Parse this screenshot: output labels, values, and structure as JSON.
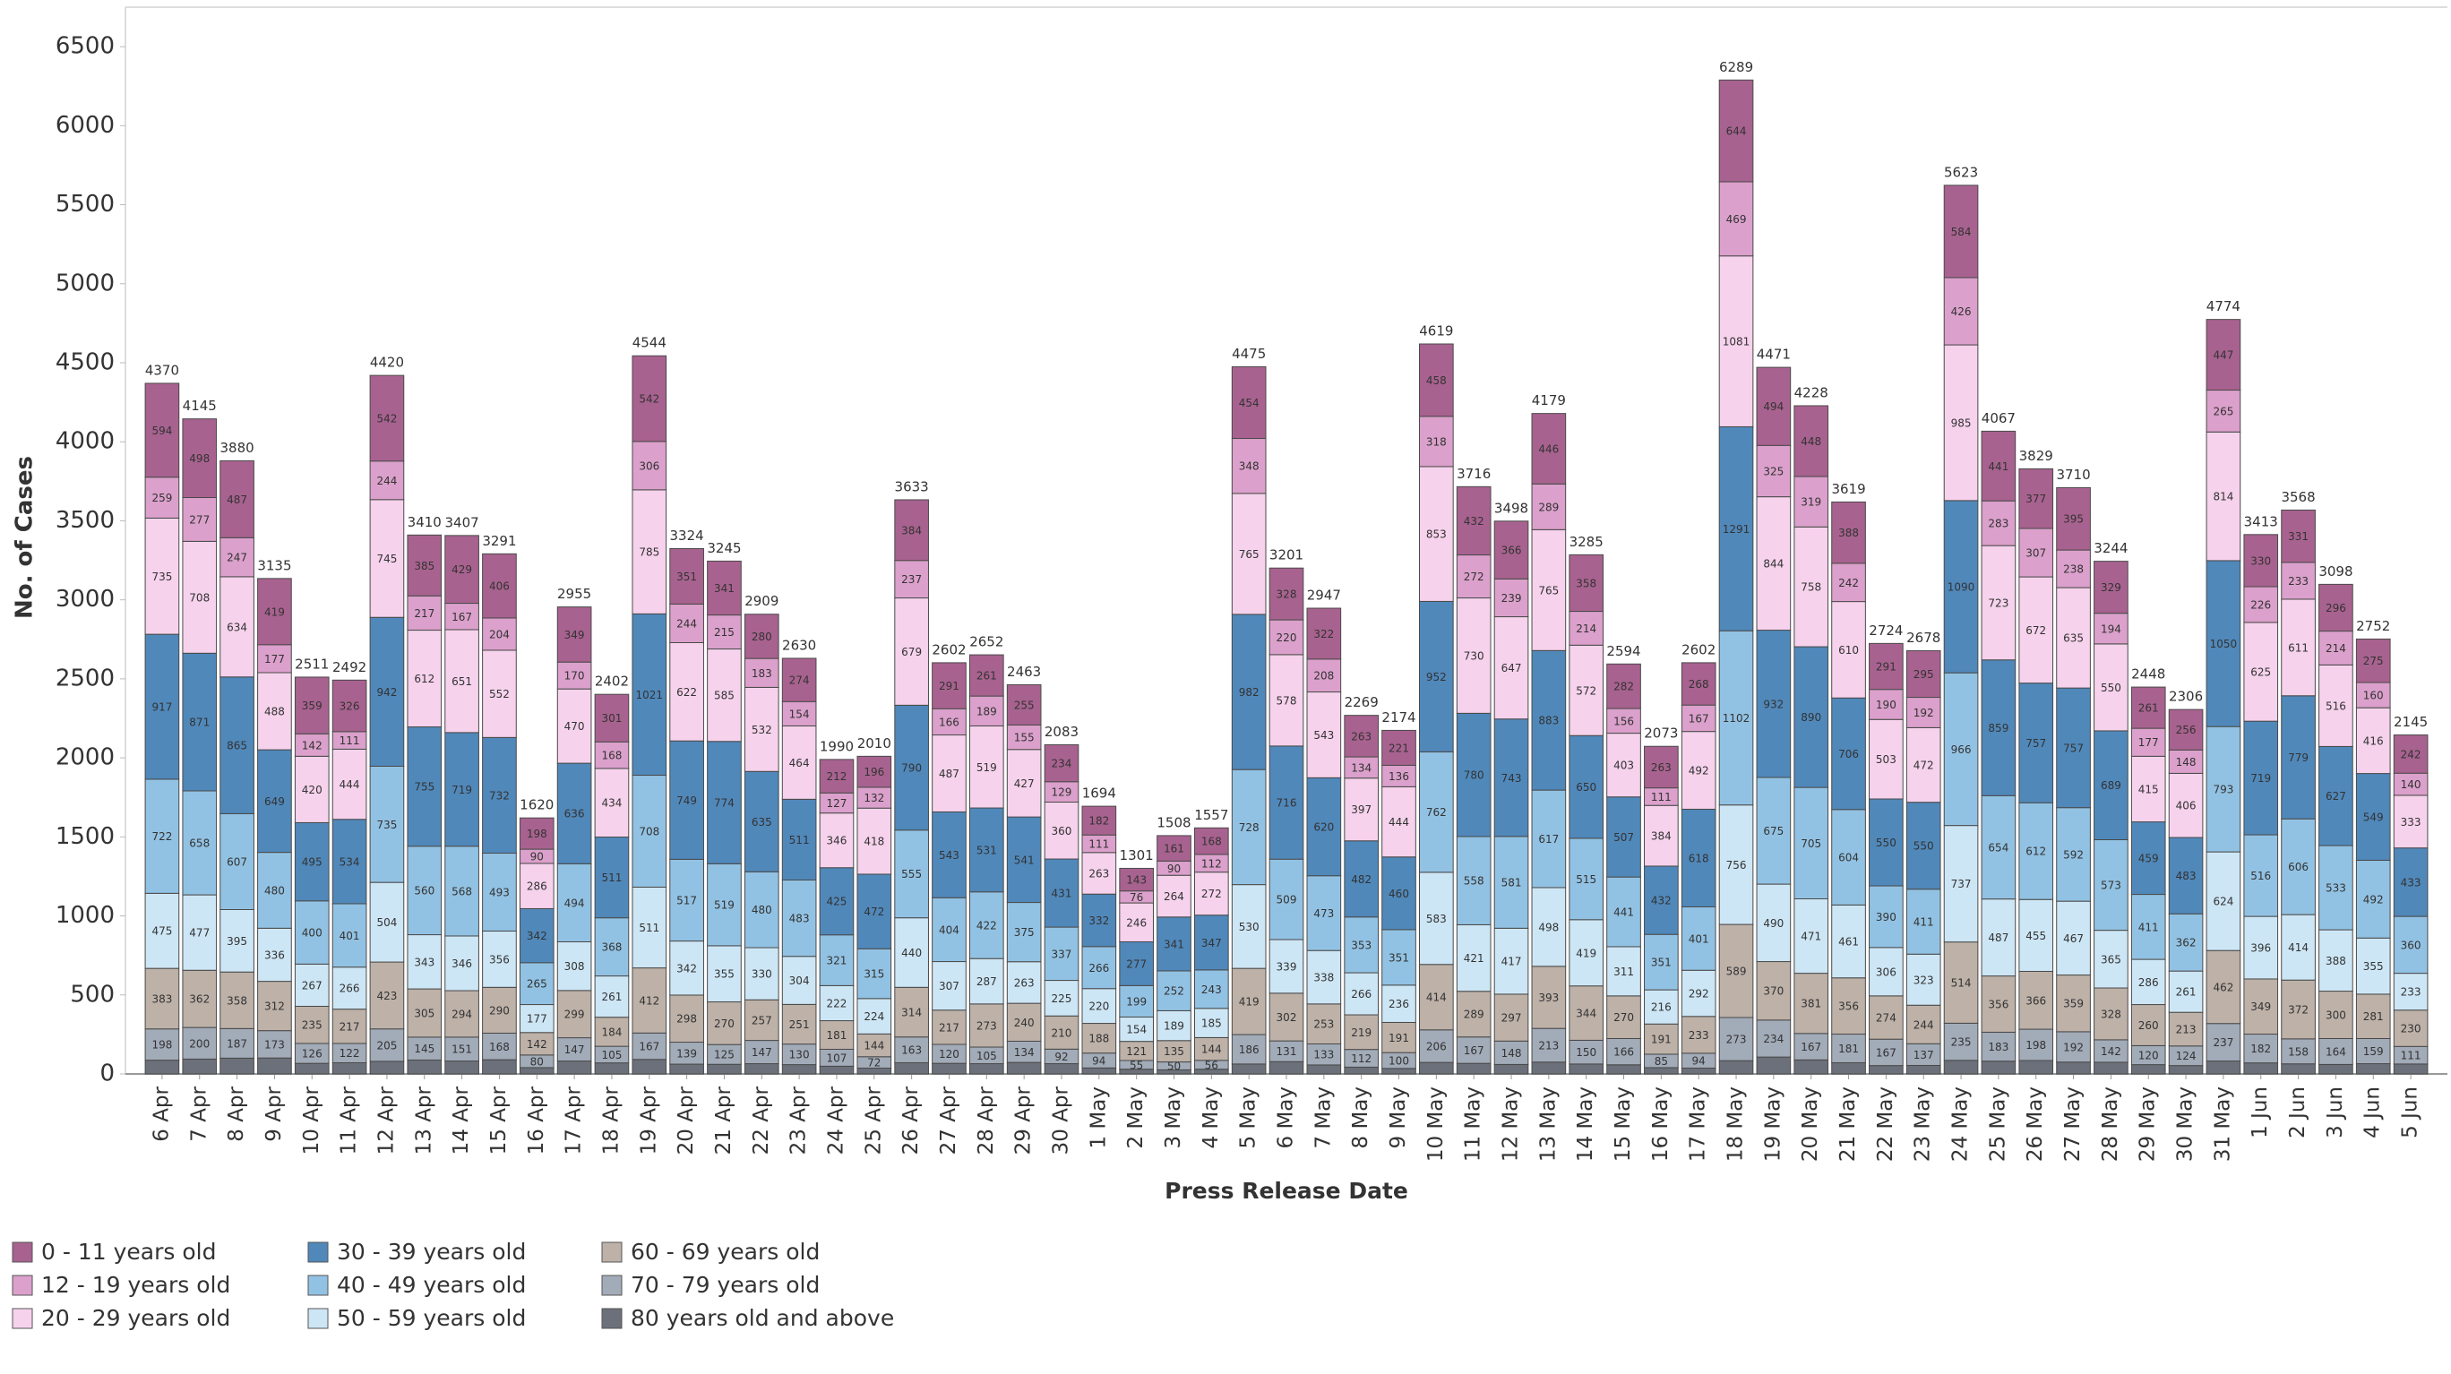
{
  "chart_data": {
    "type": "stacked_bar",
    "y_label": "No. of Cases",
    "x_label": "Press Release Date",
    "categories": [
      "6 Apr",
      "7 Apr",
      "8 Apr",
      "9 Apr",
      "10 Apr",
      "11 Apr",
      "12 Apr",
      "13 Apr",
      "14 Apr",
      "15 Apr",
      "16 Apr",
      "17 Apr",
      "18 Apr",
      "19 Apr",
      "20 Apr",
      "21 Apr",
      "22 Apr",
      "23 Apr",
      "24 Apr",
      "25 Apr",
      "26 Apr",
      "27 Apr",
      "28 Apr",
      "29 Apr",
      "30 Apr",
      "1 May",
      "2 May",
      "3 May",
      "4 May",
      "5 May",
      "6 May",
      "7 May",
      "8 May",
      "9 May",
      "10 May",
      "11 May",
      "12 May",
      "13 May",
      "14 May",
      "15 May",
      "16 May",
      "17 May",
      "18 May",
      "19 May",
      "20 May",
      "21 May",
      "22 May",
      "23 May",
      "24 May",
      "25 May",
      "26 May",
      "27 May",
      "28 May",
      "29 May",
      "30 May",
      "31 May",
      "1 Jun",
      "2 Jun",
      "3 Jun",
      "4 Jun",
      "5 Jun"
    ],
    "series": [
      {
        "name": "0 - 11 years old",
        "color": "#a8628f",
        "values": [
          594,
          498,
          487,
          419,
          359,
          326,
          542,
          385,
          429,
          406,
          198,
          349,
          301,
          542,
          351,
          341,
          280,
          274,
          212,
          196,
          384,
          291,
          261,
          255,
          234,
          182,
          143,
          161,
          168,
          454,
          328,
          322,
          263,
          221,
          458,
          432,
          366,
          446,
          358,
          282,
          263,
          268,
          644,
          494,
          448,
          388,
          291,
          295,
          584,
          441,
          377,
          395,
          329,
          261,
          256,
          447,
          330,
          331,
          296,
          275,
          242
        ]
      },
      {
        "name": "12 - 19 years old",
        "color": "#dba0cb",
        "values": [
          259,
          277,
          247,
          177,
          142,
          111,
          244,
          217,
          167,
          204,
          90,
          170,
          168,
          306,
          244,
          215,
          183,
          154,
          127,
          132,
          237,
          166,
          189,
          155,
          129,
          111,
          76,
          90,
          112,
          348,
          220,
          208,
          134,
          136,
          318,
          272,
          239,
          289,
          214,
          156,
          111,
          167,
          469,
          325,
          319,
          242,
          190,
          192,
          426,
          283,
          307,
          238,
          194,
          177,
          148,
          265,
          226,
          233,
          214,
          160,
          140
        ]
      },
      {
        "name": "20 - 29 years old",
        "color": "#f6d2ec",
        "values": [
          735,
          708,
          634,
          488,
          420,
          444,
          745,
          612,
          651,
          552,
          286,
          470,
          434,
          785,
          622,
          585,
          532,
          464,
          346,
          418,
          679,
          487,
          519,
          427,
          360,
          263,
          246,
          264,
          272,
          765,
          578,
          543,
          397,
          444,
          853,
          730,
          647,
          765,
          572,
          403,
          384,
          492,
          1081,
          844,
          758,
          610,
          503,
          472,
          985,
          723,
          672,
          635,
          550,
          415,
          406,
          814,
          625,
          611,
          516,
          416,
          333
        ]
      },
      {
        "name": "30 - 39 years old",
        "color": "#5088ba",
        "values": [
          917,
          871,
          865,
          649,
          495,
          534,
          942,
          755,
          719,
          732,
          342,
          636,
          511,
          1021,
          749,
          774,
          635,
          511,
          425,
          472,
          790,
          543,
          531,
          541,
          431,
          332,
          277,
          341,
          347,
          982,
          716,
          620,
          482,
          460,
          952,
          780,
          743,
          883,
          650,
          507,
          432,
          618,
          1291,
          932,
          890,
          706,
          550,
          550,
          1090,
          859,
          757,
          757,
          689,
          459,
          483,
          1050,
          719,
          779,
          627,
          549,
          433
        ]
      },
      {
        "name": "40 - 49 years old",
        "color": "#92c2e3",
        "values": [
          722,
          658,
          607,
          480,
          400,
          401,
          735,
          560,
          568,
          493,
          265,
          494,
          368,
          708,
          517,
          519,
          480,
          483,
          321,
          315,
          555,
          404,
          422,
          375,
          337,
          266,
          199,
          252,
          243,
          728,
          509,
          473,
          353,
          351,
          762,
          558,
          581,
          617,
          515,
          441,
          351,
          401,
          1102,
          675,
          705,
          604,
          390,
          411,
          966,
          654,
          612,
          592,
          573,
          411,
          362,
          793,
          516,
          606,
          533,
          492,
          360
        ]
      },
      {
        "name": "50 - 59 years old",
        "color": "#cde6f5",
        "values": [
          475,
          477,
          395,
          336,
          267,
          266,
          504,
          343,
          346,
          356,
          177,
          308,
          261,
          511,
          342,
          355,
          330,
          304,
          222,
          224,
          440,
          307,
          287,
          263,
          225,
          220,
          154,
          189,
          185,
          530,
          339,
          338,
          266,
          236,
          583,
          421,
          417,
          498,
          419,
          311,
          216,
          292,
          756,
          490,
          471,
          461,
          306,
          323,
          737,
          487,
          455,
          467,
          365,
          286,
          261,
          624,
          396,
          414,
          388,
          355,
          233
        ]
      },
      {
        "name": "60 - 69 years old",
        "color": "#bdb1a8",
        "values": [
          383,
          362,
          358,
          312,
          235,
          217,
          423,
          305,
          294,
          290,
          142,
          299,
          184,
          412,
          298,
          270,
          257,
          251,
          181,
          144,
          314,
          217,
          273,
          240,
          210,
          188,
          121,
          135,
          144,
          419,
          302,
          253,
          219,
          191,
          414,
          289,
          297,
          393,
          344,
          270,
          191,
          233,
          589,
          370,
          381,
          356,
          274,
          244,
          514,
          356,
          366,
          359,
          328,
          260,
          213,
          462,
          349,
          372,
          300,
          281,
          230
        ]
      },
      {
        "name": "70 - 79 years old",
        "color": "#a2abb8",
        "values": [
          198,
          200,
          187,
          173,
          126,
          122,
          205,
          145,
          151,
          168,
          80,
          147,
          105,
          167,
          139,
          125,
          147,
          130,
          107,
          72,
          163,
          120,
          105,
          134,
          92,
          94,
          55,
          50,
          56,
          186,
          131,
          133,
          112,
          100,
          206,
          167,
          148,
          213,
          150,
          166,
          85,
          94,
          273,
          234,
          167,
          181,
          167,
          137,
          235,
          183,
          198,
          192,
          142,
          120,
          124,
          237,
          182,
          158,
          164,
          159,
          111
        ]
      },
      {
        "name": "80 years old and above",
        "color": "#6b707a",
        "data_labels": false,
        "values": [
          87,
          94,
          100,
          101,
          67,
          71,
          80,
          88,
          82,
          90,
          40,
          82,
          70,
          92,
          62,
          61,
          65,
          59,
          49,
          37,
          71,
          67,
          65,
          73,
          65,
          38,
          30,
          26,
          30,
          63,
          78,
          57,
          43,
          35,
          73,
          67,
          60,
          75,
          63,
          58,
          40,
          37,
          84,
          107,
          89,
          71,
          53,
          54,
          86,
          81,
          85,
          75,
          74,
          59,
          53,
          82,
          70,
          64,
          60,
          65,
          63
        ]
      }
    ],
    "totals": [
      4370,
      4145,
      3880,
      3135,
      2511,
      2492,
      4420,
      3410,
      3407,
      3291,
      1620,
      2955,
      2402,
      4544,
      3324,
      3245,
      2909,
      2630,
      1990,
      2010,
      3633,
      2602,
      2652,
      2463,
      2083,
      1694,
      1301,
      1508,
      1557,
      4475,
      3201,
      2947,
      2269,
      2174,
      4619,
      3716,
      3498,
      4179,
      3285,
      2594,
      2073,
      2602,
      6289,
      4471,
      4228,
      3619,
      2724,
      2678,
      5623,
      4067,
      3829,
      3710,
      3244,
      2448,
      2306,
      4774,
      3413,
      3568,
      3098,
      2752,
      2145
    ],
    "ylim": [
      0,
      6750
    ],
    "yticks": [
      0,
      500,
      1000,
      1500,
      2000,
      2500,
      3000,
      3500,
      4000,
      4500,
      5000,
      5500,
      6000,
      6500
    ],
    "grid": false,
    "legend": "bottom-left"
  }
}
